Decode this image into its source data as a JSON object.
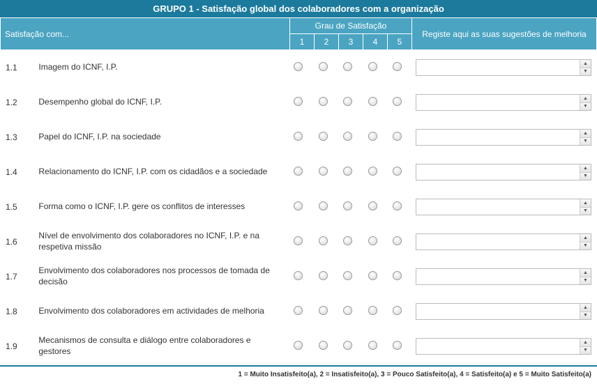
{
  "colors": {
    "header_dark": "#1c7a9c",
    "header_light": "#4aa4c2",
    "text": "#333333",
    "border": "#bbbbbb"
  },
  "title": "GRUPO 1 - Satisfação global dos colaboradores com a organização",
  "header": {
    "label": "Satisfação com...",
    "grau": "Grau de Satisfação",
    "sugestoes": "Registe aqui as suas sugestões de melhoria",
    "nums": [
      "1",
      "2",
      "3",
      "4",
      "5"
    ]
  },
  "rows": [
    {
      "num": "1.1",
      "label": "Imagem do ICNF, I.P."
    },
    {
      "num": "1.2",
      "label": "Desempenho global do ICNF, I.P."
    },
    {
      "num": "1.3",
      "label": "Papel do ICNF, I.P. na sociedade"
    },
    {
      "num": "1.4",
      "label": "Relacionamento do ICNF, I.P. com os cidadãos e a sociedade"
    },
    {
      "num": "1.5",
      "label": "Forma como o ICNF, I.P. gere os conflitos de interesses"
    },
    {
      "num": "1.6",
      "label": "Nível de envolvimento dos colaboradores no ICNF, I.P. e na respetiva missão"
    },
    {
      "num": "1.7",
      "label": "Envolvimento dos colaboradores nos processos de tomada de decisão"
    },
    {
      "num": "1.8",
      "label": "Envolvimento dos colaboradores em actividades de melhoria"
    },
    {
      "num": "1.9",
      "label": "Mecanismos de consulta e diálogo entre colaboradores e gestores"
    }
  ],
  "legend": "1 = Muito Insatisfeito(a),  2 = Insatisfeito(a),  3 = Pouco Satisfeito(a),  4 = Satisfeito(a) e  5 = Muito Satisfeito(a)"
}
